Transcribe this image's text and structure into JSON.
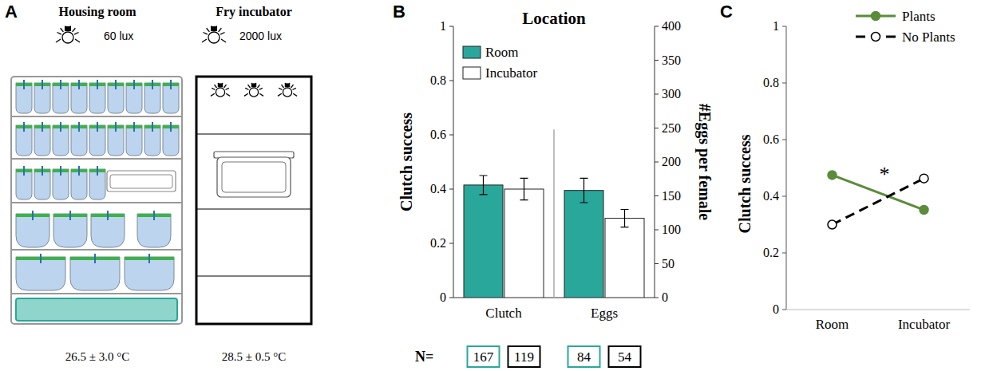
{
  "diagram": {
    "panel_label": "A",
    "housing_room": {
      "title": "Housing room",
      "light": "60 lux",
      "temperature": "26.5 ± 3.0 °C"
    },
    "fry_incubator": {
      "title": "Fry incubator",
      "light": "2000 lux",
      "temperature": "28.5 ± 0.5 °C"
    }
  },
  "chart_data": [
    {
      "panel_label": "B",
      "type": "bar",
      "title": "Location",
      "categories": [
        "Clutch",
        "Eggs"
      ],
      "ylabel": "Clutch success",
      "ylim": [
        0,
        1
      ],
      "yticks": [
        0,
        0.2,
        0.4,
        0.6,
        0.8,
        1
      ],
      "y2label": "#Eggs per female",
      "y2lim": [
        0,
        400
      ],
      "y2ticks": [
        0,
        50,
        100,
        150,
        200,
        250,
        300,
        350,
        400
      ],
      "legend": "upper left",
      "n_label": "N=",
      "series": [
        {
          "name": "Room",
          "color": "#2aa79b",
          "values": [
            0.415,
            null
          ],
          "errors": [
            0.035,
            null
          ],
          "n": [
            167,
            null
          ]
        },
        {
          "name": "Incubator",
          "color": "#ffffff",
          "values": [
            0.4,
            null
          ],
          "errors": [
            0.04,
            null
          ],
          "n": [
            119,
            null
          ]
        },
        {
          "color": "#2aa79b",
          "axis": "y2",
          "values": [
            null,
            158
          ],
          "errors": [
            null,
            18
          ],
          "n": [
            null,
            84
          ]
        },
        {
          "color": "#ffffff",
          "axis": "y2",
          "values": [
            null,
            117
          ],
          "errors": [
            null,
            13
          ],
          "n": [
            null,
            54
          ]
        }
      ]
    },
    {
      "panel_label": "C",
      "type": "line",
      "categories": [
        "Room",
        "Incubator"
      ],
      "ylabel": "Clutch success",
      "ylim": [
        0,
        1
      ],
      "yticks": [
        0,
        0.2,
        0.4,
        0.6,
        0.8,
        1
      ],
      "legend": "upper right",
      "annotation": "*",
      "series": [
        {
          "name": "Plants",
          "color": "#5b8c3a",
          "marker": "circle",
          "line_style": "solid",
          "values": [
            0.475,
            0.352
          ]
        },
        {
          "name": "No Plants",
          "color": "#000000",
          "marker": "open_circle",
          "line_style": "dashed",
          "values": [
            0.3,
            0.463
          ]
        }
      ]
    }
  ]
}
